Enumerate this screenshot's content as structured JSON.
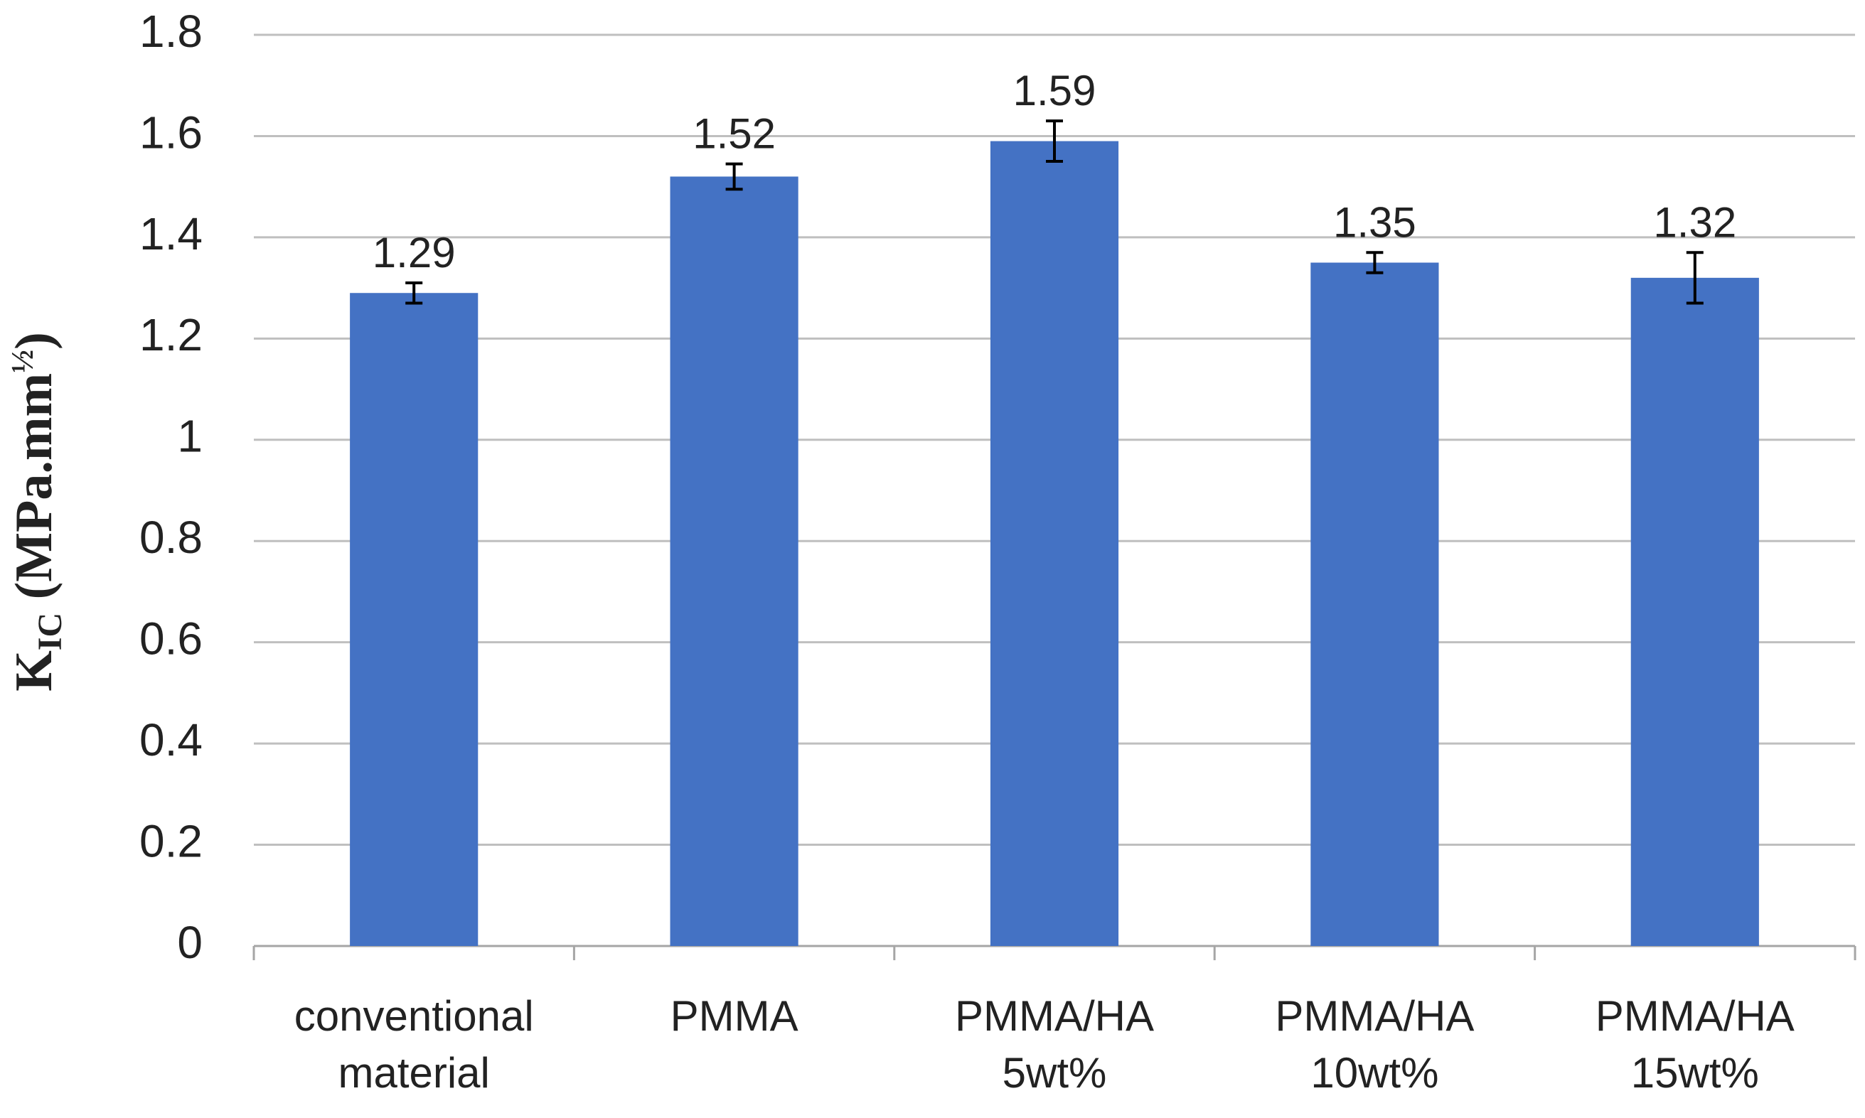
{
  "chart_data": {
    "type": "bar",
    "y_label_parts": [
      "K",
      "IC",
      " (MPa.mm",
      "½",
      ")"
    ],
    "categories": [
      [
        "conventional",
        "material"
      ],
      [
        "PMMA"
      ],
      [
        "PMMA/HA",
        "5wt%"
      ],
      [
        "PMMA/HA",
        "10wt%"
      ],
      [
        "PMMA/HA",
        "15wt%"
      ]
    ],
    "values": [
      1.29,
      1.52,
      1.59,
      1.35,
      1.32
    ],
    "errors": [
      0.02,
      0.025,
      0.04,
      0.02,
      0.05
    ],
    "color": "#4472c4",
    "ylim": [
      0,
      1.8
    ],
    "yticks": [
      0,
      0.2,
      0.4,
      0.6,
      0.8,
      1,
      1.2,
      1.4,
      1.6,
      1.8
    ],
    "grid": true
  }
}
